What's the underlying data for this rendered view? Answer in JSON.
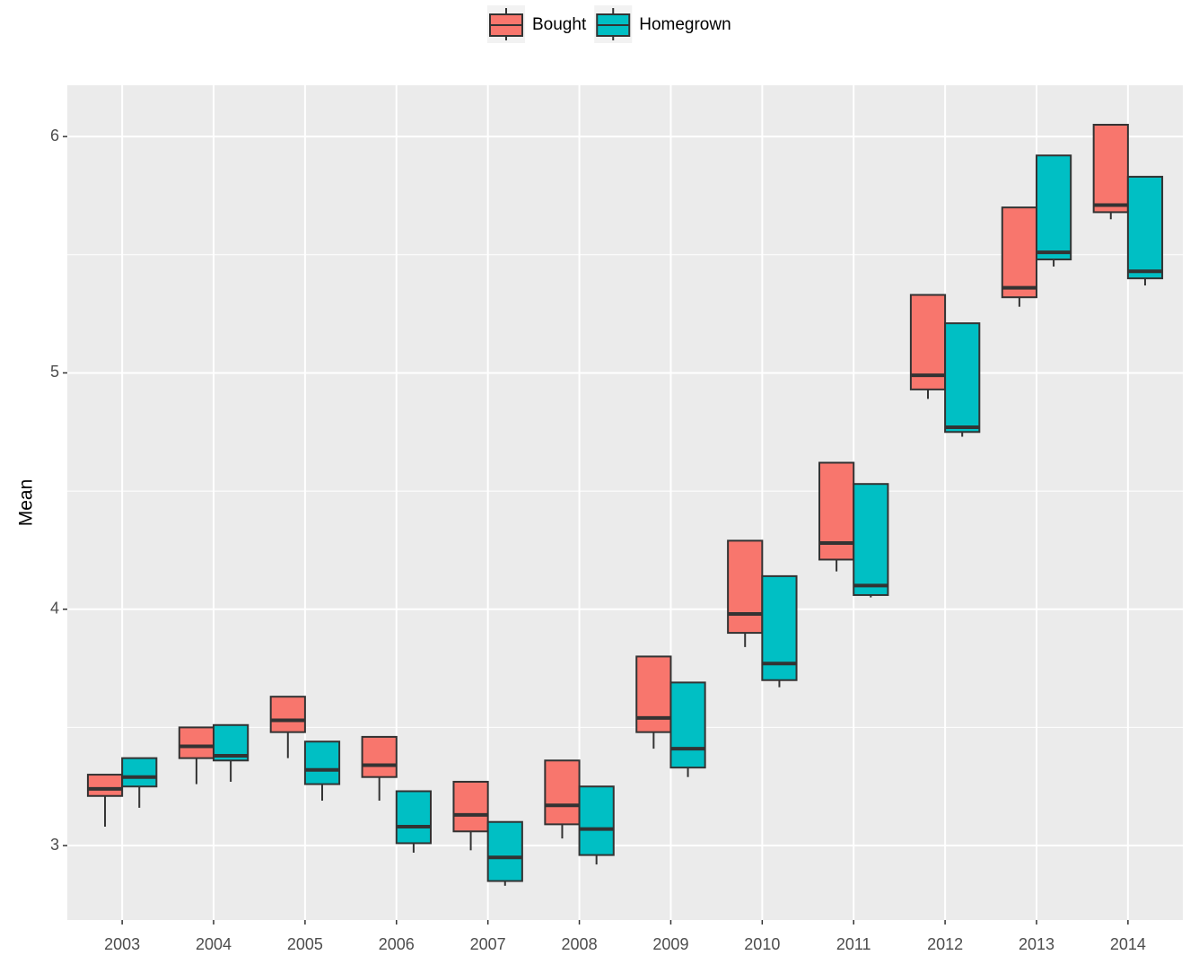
{
  "chart_data": {
    "type": "box",
    "y_label": "Mean",
    "categories": [
      "2003",
      "2004",
      "2005",
      "2006",
      "2007",
      "2008",
      "2009",
      "2010",
      "2011",
      "2012",
      "2013",
      "2014"
    ],
    "series": [
      {
        "name": "Bought",
        "color": "#F8766D",
        "min": [
          3.08,
          3.26,
          3.37,
          3.19,
          2.98,
          3.03,
          3.41,
          3.84,
          4.16,
          4.89,
          5.28,
          5.65
        ],
        "q1": [
          3.21,
          3.37,
          3.48,
          3.29,
          3.06,
          3.09,
          3.48,
          3.9,
          4.21,
          4.93,
          5.32,
          5.68
        ],
        "median": [
          3.24,
          3.42,
          3.53,
          3.34,
          3.13,
          3.17,
          3.54,
          3.98,
          4.28,
          4.99,
          5.36,
          5.71
        ],
        "q3": [
          3.3,
          3.5,
          3.63,
          3.46,
          3.27,
          3.36,
          3.8,
          4.29,
          4.62,
          5.33,
          5.7,
          6.05
        ]
      },
      {
        "name": "Homegrown",
        "color": "#00BFC4",
        "min": [
          3.16,
          3.27,
          3.19,
          2.97,
          2.83,
          2.92,
          3.29,
          3.67,
          4.05,
          4.73,
          5.45,
          5.37
        ],
        "q1": [
          3.25,
          3.36,
          3.26,
          3.01,
          2.85,
          2.96,
          3.33,
          3.7,
          4.06,
          4.75,
          5.48,
          5.4
        ],
        "median": [
          3.29,
          3.38,
          3.32,
          3.08,
          2.95,
          3.07,
          3.41,
          3.77,
          4.1,
          4.77,
          5.51,
          5.43
        ],
        "q3": [
          3.37,
          3.51,
          3.44,
          3.23,
          3.1,
          3.25,
          3.69,
          4.14,
          4.53,
          5.21,
          5.92,
          5.83
        ]
      }
    ],
    "ylim": [
      2.685,
      6.217
    ],
    "yticks": [
      3,
      4,
      5,
      6
    ],
    "grid": true,
    "legend": "top"
  }
}
